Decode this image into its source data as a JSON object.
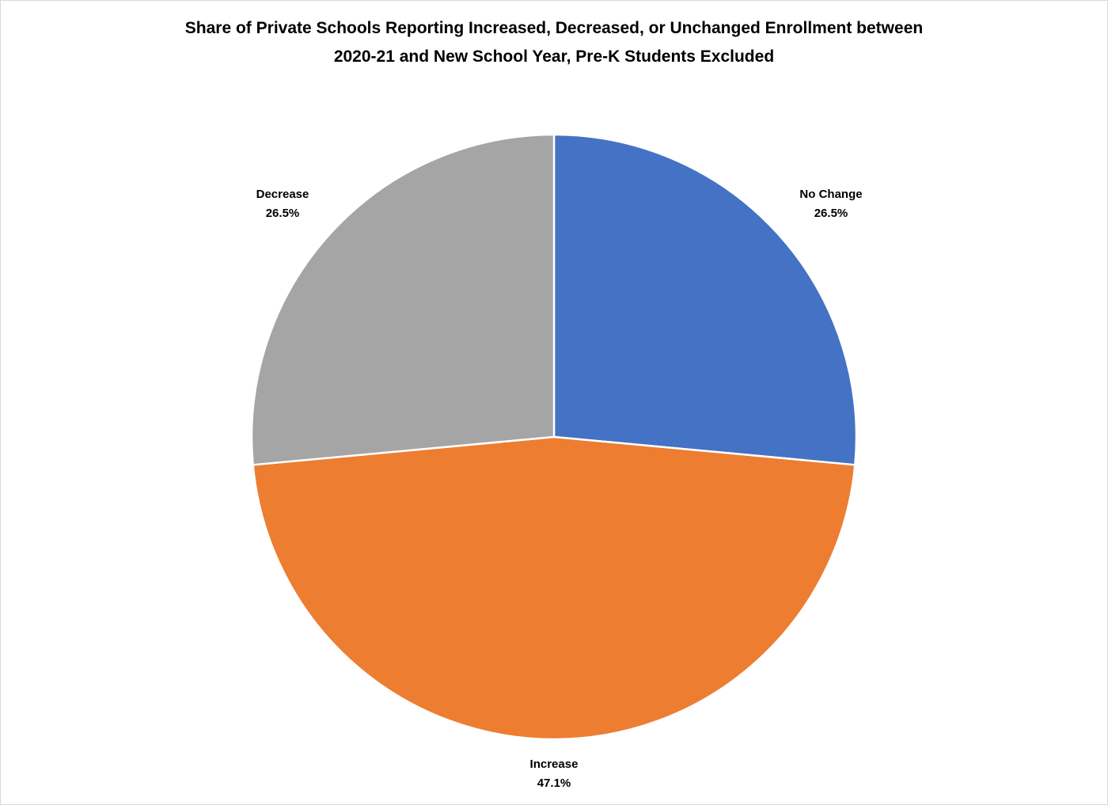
{
  "chart_data": {
    "type": "pie",
    "title_lines": [
      "Share of Private Schools Reporting Increased, Decreased, or Unchanged Enrollment between",
      "2020-21 and New School Year, Pre-K Students Excluded"
    ],
    "start_angle": "top, clockwise",
    "slices": [
      {
        "label": "No Change",
        "value": 26.5,
        "value_label": "26.5%",
        "color": "#4472C4"
      },
      {
        "label": "Increase",
        "value": 47.1,
        "value_label": "47.1%",
        "color": "#ED7D31"
      },
      {
        "label": "Decrease",
        "value": 26.5,
        "value_label": "26.5%",
        "color": "#A5A5A5"
      }
    ],
    "legend": "none"
  }
}
